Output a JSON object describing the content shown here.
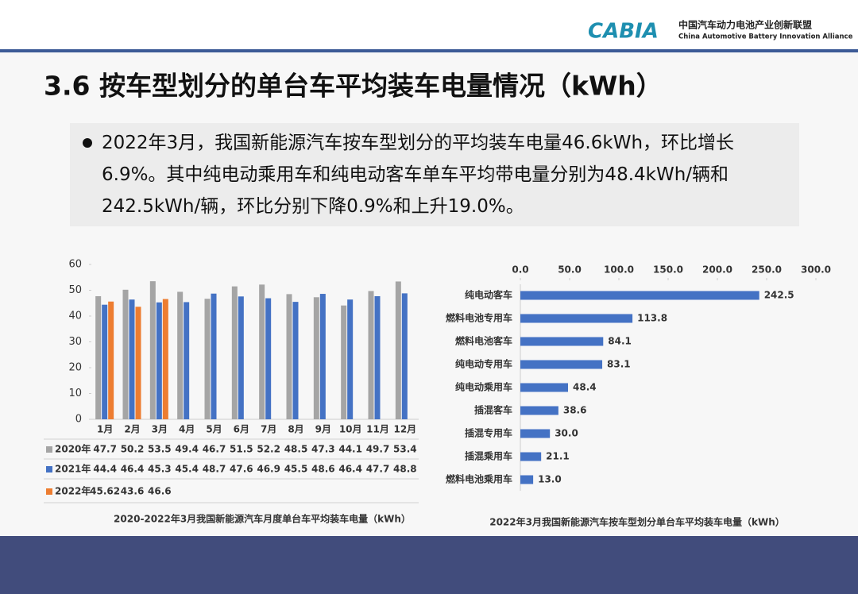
{
  "header": {
    "logo": "CABIA",
    "org_cn": "中国汽车动力电池产业创新联盟",
    "org_en": "China Automotive Battery Innovation Alliance"
  },
  "title": "3.6 按车型划分的单台车平均装车电量情况（kWh）",
  "bullet": "2022年3月，我国新能源汽车按车型划分的平均装车电量46.6kWh，环比增长6.9%。其中纯电动乘用车和纯电动客车单车平均带电量分别为48.4kWh/辆和242.5kWh/辆，环比分别下降0.9%和上升19.0%。",
  "chart_data": [
    {
      "type": "bar",
      "title": "2020-2022年3月我国新能源汽车月度单台车平均装车电量（kWh）",
      "categories": [
        "1月",
        "2月",
        "3月",
        "4月",
        "5月",
        "6月",
        "7月",
        "8月",
        "9月",
        "10月",
        "11月",
        "12月"
      ],
      "series": [
        {
          "name": "2020年",
          "color": "#a5a5a5",
          "values": [
            47.7,
            50.2,
            53.5,
            49.4,
            46.7,
            51.5,
            52.2,
            48.5,
            47.3,
            44.1,
            49.7,
            53.4
          ]
        },
        {
          "name": "2021年",
          "color": "#4472c4",
          "values": [
            44.4,
            46.4,
            45.3,
            45.4,
            48.7,
            47.6,
            46.9,
            45.5,
            48.6,
            46.4,
            47.7,
            48.8
          ]
        },
        {
          "name": "2022年",
          "color": "#ed7d31",
          "values": [
            45.62,
            43.6,
            46.6,
            null,
            null,
            null,
            null,
            null,
            null,
            null,
            null,
            null
          ]
        }
      ],
      "ylim": [
        0,
        60
      ],
      "yticks": [
        0,
        10,
        20,
        30,
        40,
        50,
        60
      ],
      "grid": false,
      "data_table": true
    },
    {
      "type": "hbar",
      "title": "2022年3月我国新能源汽车按车型划分单台车平均装车电量（kWh）",
      "categories": [
        "纯电动客车",
        "燃料电池专用车",
        "燃料电池客车",
        "纯电动专用车",
        "纯电动乘用车",
        "插混客车",
        "插混专用车",
        "插混乘用车",
        "燃料电池乘用车"
      ],
      "values": [
        242.5,
        113.8,
        84.1,
        83.1,
        48.4,
        38.6,
        30,
        21.1,
        13
      ],
      "value_labels": [
        "242.5",
        "113.8",
        "84.1",
        "83.1",
        "48.4",
        "38.6",
        "30.0",
        "21.1",
        "13.0"
      ],
      "color": "#4472c4",
      "xlim": [
        0,
        300
      ],
      "xticks": [
        {
          "value": 0,
          "label": "0.0"
        },
        {
          "value": 50,
          "label": "50.0"
        },
        {
          "value": 100,
          "label": "100.0"
        },
        {
          "value": 150,
          "label": "150.0"
        },
        {
          "value": 200,
          "label": "200.0"
        },
        {
          "value": 250,
          "label": "250.0"
        },
        {
          "value": 300,
          "label": "300.0"
        }
      ],
      "grid": false
    }
  ]
}
